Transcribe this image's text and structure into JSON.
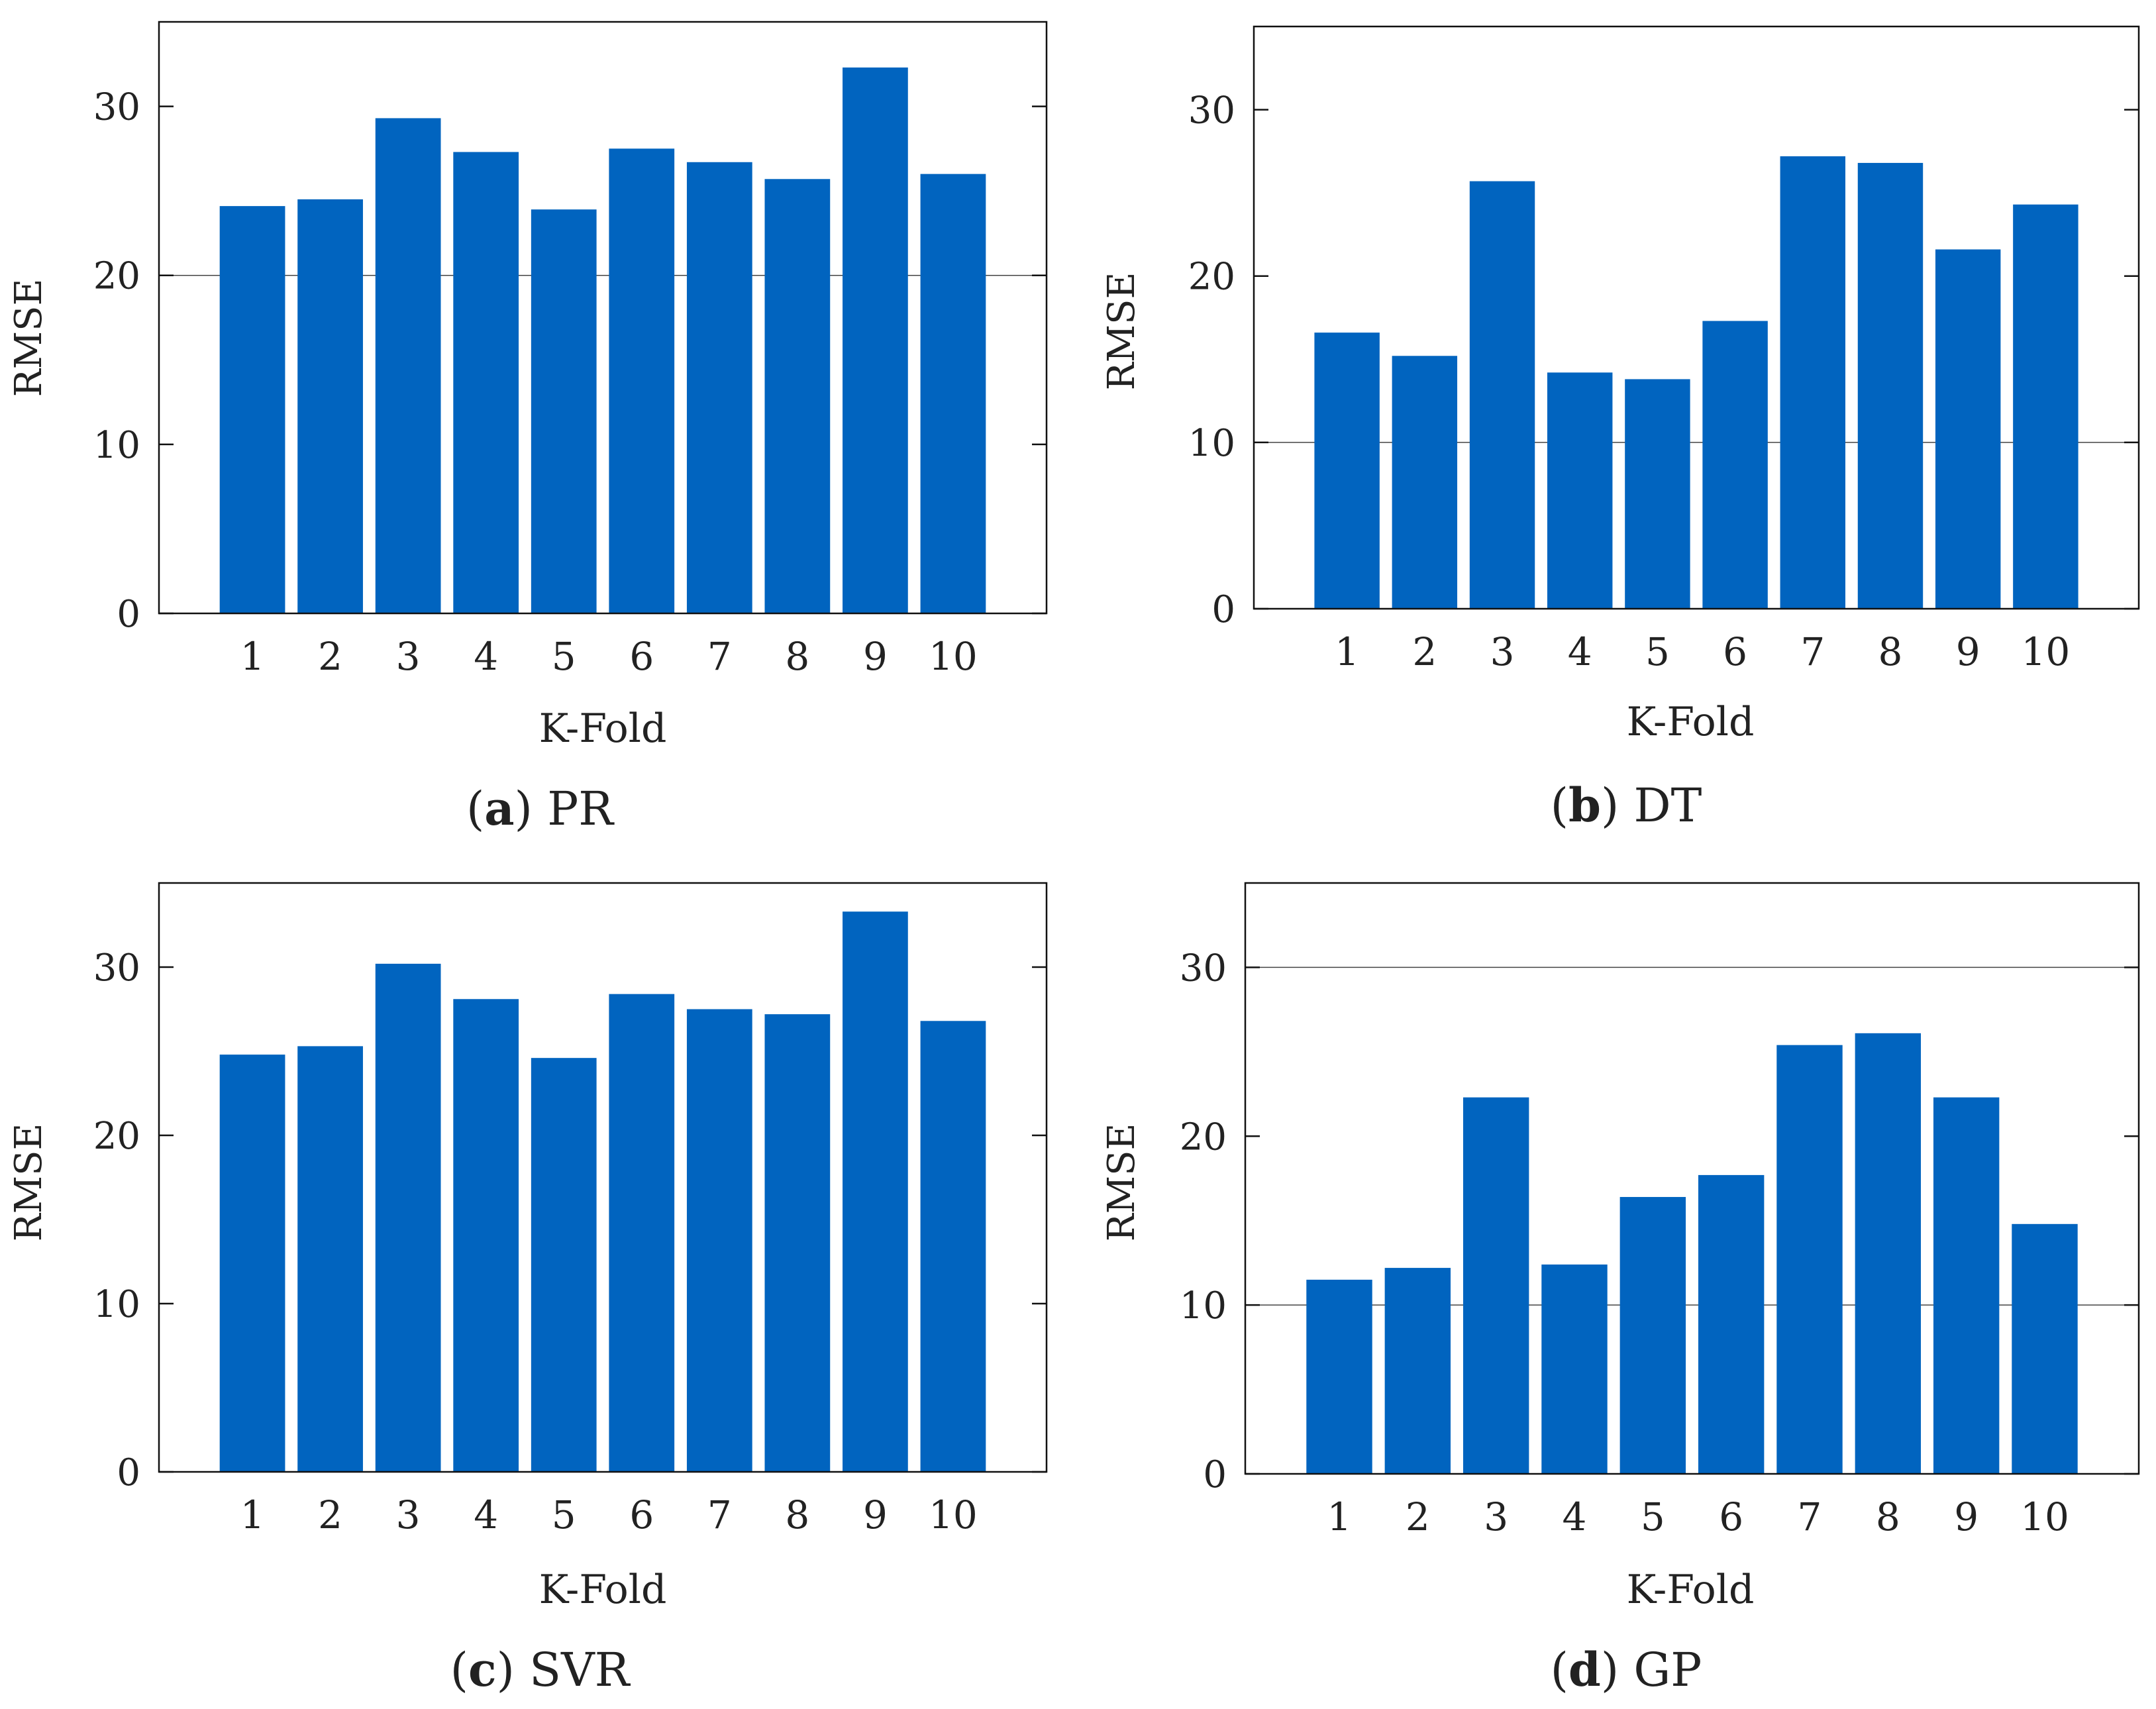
{
  "colors": {
    "bar": "#0164BF",
    "axis": "#111111",
    "grid": "#444444"
  },
  "chart_data": [
    {
      "type": "bar",
      "panel_label": "a",
      "title": "PR",
      "xlabel": "K-Fold",
      "ylabel": "RMSE",
      "categories": [
        "1",
        "2",
        "3",
        "4",
        "5",
        "6",
        "7",
        "8",
        "9",
        "10"
      ],
      "values": [
        24.1,
        24.5,
        29.3,
        27.3,
        23.9,
        27.5,
        26.7,
        25.7,
        32.3,
        26.0
      ],
      "ylim": [
        0,
        35
      ],
      "yticks": [
        0,
        10,
        20,
        30
      ],
      "grid_lines": [
        20
      ],
      "xlim": [
        -0.2,
        11.2
      ]
    },
    {
      "type": "bar",
      "panel_label": "b",
      "title": "DT",
      "xlabel": "K-Fold",
      "ylabel": "RMSE",
      "categories": [
        "1",
        "2",
        "3",
        "4",
        "5",
        "6",
        "7",
        "8",
        "9",
        "10"
      ],
      "values": [
        16.6,
        15.2,
        25.7,
        14.2,
        13.8,
        17.3,
        27.2,
        26.8,
        21.6,
        24.3
      ],
      "ylim": [
        0,
        35
      ],
      "yticks": [
        0,
        10,
        20,
        30
      ],
      "grid_lines": [
        10
      ],
      "xlim": [
        -0.2,
        11.2
      ]
    },
    {
      "type": "bar",
      "panel_label": "c",
      "title": "SVR",
      "xlabel": "K-Fold",
      "ylabel": "RMSE",
      "categories": [
        "1",
        "2",
        "3",
        "4",
        "5",
        "6",
        "7",
        "8",
        "9",
        "10"
      ],
      "values": [
        24.8,
        25.3,
        30.2,
        28.1,
        24.6,
        28.4,
        27.5,
        27.2,
        33.3,
        26.8
      ],
      "ylim": [
        0,
        35
      ],
      "yticks": [
        0,
        10,
        20,
        30
      ],
      "grid_lines": [],
      "xlim": [
        -0.2,
        11.2
      ]
    },
    {
      "type": "bar",
      "panel_label": "d",
      "title": "GP",
      "xlabel": "K-Fold",
      "ylabel": "RMSE",
      "categories": [
        "1",
        "2",
        "3",
        "4",
        "5",
        "6",
        "7",
        "8",
        "9",
        "10"
      ],
      "values": [
        11.5,
        12.2,
        22.3,
        12.4,
        16.4,
        17.7,
        25.4,
        26.1,
        22.3,
        14.8
      ],
      "ylim": [
        0,
        35
      ],
      "yticks": [
        0,
        10,
        20,
        30
      ],
      "grid_lines": [
        10,
        30
      ],
      "xlim": [
        -0.2,
        11.2
      ]
    }
  ]
}
